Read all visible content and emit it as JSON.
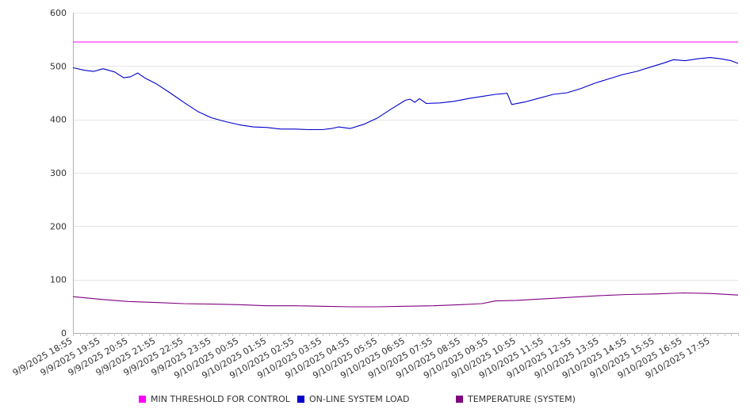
{
  "chart_data": {
    "type": "line",
    "title": "",
    "xlabel": "",
    "ylabel": "",
    "ylim": [
      0,
      600
    ],
    "y_ticks": [
      0,
      100,
      200,
      300,
      400,
      500,
      600
    ],
    "grid": "horizontal",
    "legend_position": "bottom",
    "x_range": [
      "9/9/2025 18:55",
      "9/10/2025 18:55"
    ],
    "x_tick_labels": [
      "9/9/2025 18:55",
      "9/9/2025 19:55",
      "9/9/2025 20:55",
      "9/9/2025 21:55",
      "9/9/2025 22:55",
      "9/9/2025 23:55",
      "9/10/2025 00:55",
      "9/10/2025 01:55",
      "9/10/2025 02:55",
      "9/10/2025 03:55",
      "9/10/2025 04:55",
      "9/10/2025 05:55",
      "9/10/2025 06:55",
      "9/10/2025 07:55",
      "9/10/2025 08:55",
      "9/10/2025 09:55",
      "9/10/2025 10:55",
      "9/10/2025 11:55",
      "9/10/2025 12:55",
      "9/10/2025 13:55",
      "9/10/2025 14:55",
      "9/10/2025 15:55",
      "9/10/2025 16:55",
      "9/10/2025 17:55"
    ],
    "series": [
      {
        "name": "MIN THRESHOLD FOR CONTROL",
        "color": "#ff00ff",
        "points": [
          [
            "9/9/2025 18:55",
            545
          ],
          [
            "9/10/2025 18:55",
            545
          ]
        ]
      },
      {
        "name": "ON-LINE SYSTEM LOAD",
        "color": "#0000cc",
        "points": [
          [
            "9/9/2025 18:55",
            497
          ],
          [
            "9/9/2025 19:20",
            492
          ],
          [
            "9/9/2025 19:40",
            490
          ],
          [
            "9/9/2025 20:00",
            495
          ],
          [
            "9/9/2025 20:25",
            489
          ],
          [
            "9/9/2025 20:45",
            478
          ],
          [
            "9/9/2025 21:00",
            480
          ],
          [
            "9/9/2025 21:15",
            487
          ],
          [
            "9/9/2025 21:30",
            478
          ],
          [
            "9/9/2025 21:55",
            467
          ],
          [
            "9/9/2025 22:25",
            450
          ],
          [
            "9/9/2025 22:55",
            432
          ],
          [
            "9/9/2025 23:25",
            415
          ],
          [
            "9/9/2025 23:55",
            403
          ],
          [
            "9/10/2025 00:25",
            396
          ],
          [
            "9/10/2025 00:55",
            390
          ],
          [
            "9/10/2025 01:25",
            386
          ],
          [
            "9/10/2025 01:55",
            385
          ],
          [
            "9/10/2025 02:25",
            382
          ],
          [
            "9/10/2025 02:55",
            382
          ],
          [
            "9/10/2025 03:25",
            381
          ],
          [
            "9/10/2025 03:55",
            381
          ],
          [
            "9/10/2025 04:15",
            383
          ],
          [
            "9/10/2025 04:30",
            386
          ],
          [
            "9/10/2025 04:55",
            383
          ],
          [
            "9/10/2025 05:25",
            391
          ],
          [
            "9/10/2025 05:55",
            403
          ],
          [
            "9/10/2025 06:25",
            420
          ],
          [
            "9/10/2025 06:55",
            436
          ],
          [
            "9/10/2025 07:05",
            438
          ],
          [
            "9/10/2025 07:15",
            432
          ],
          [
            "9/10/2025 07:25",
            439
          ],
          [
            "9/10/2025 07:40",
            430
          ],
          [
            "9/10/2025 08:10",
            431
          ],
          [
            "9/10/2025 08:40",
            434
          ],
          [
            "9/10/2025 09:10",
            439
          ],
          [
            "9/10/2025 09:40",
            443
          ],
          [
            "9/10/2025 10:10",
            447
          ],
          [
            "9/10/2025 10:35",
            449
          ],
          [
            "9/10/2025 10:45",
            428
          ],
          [
            "9/10/2025 11:15",
            433
          ],
          [
            "9/10/2025 11:45",
            440
          ],
          [
            "9/10/2025 12:15",
            447
          ],
          [
            "9/10/2025 12:45",
            450
          ],
          [
            "9/10/2025 13:15",
            458
          ],
          [
            "9/10/2025 13:45",
            468
          ],
          [
            "9/10/2025 14:15",
            476
          ],
          [
            "9/10/2025 14:45",
            484
          ],
          [
            "9/10/2025 15:15",
            490
          ],
          [
            "9/10/2025 15:45",
            498
          ],
          [
            "9/10/2025 16:15",
            506
          ],
          [
            "9/10/2025 16:35",
            512
          ],
          [
            "9/10/2025 17:00",
            510
          ],
          [
            "9/10/2025 17:30",
            514
          ],
          [
            "9/10/2025 17:55",
            516
          ],
          [
            "9/10/2025 18:15",
            514
          ],
          [
            "9/10/2025 18:40",
            510
          ],
          [
            "9/10/2025 18:55",
            505
          ]
        ]
      },
      {
        "name": "TEMPERATURE (SYSTEM)",
        "color": "#800080",
        "points": [
          [
            "9/9/2025 18:55",
            68
          ],
          [
            "9/9/2025 19:55",
            63
          ],
          [
            "9/9/2025 20:55",
            59
          ],
          [
            "9/9/2025 21:55",
            57
          ],
          [
            "9/9/2025 22:55",
            55
          ],
          [
            "9/9/2025 23:55",
            54
          ],
          [
            "9/10/2025 00:55",
            53
          ],
          [
            "9/10/2025 01:55",
            51
          ],
          [
            "9/10/2025 02:55",
            51
          ],
          [
            "9/10/2025 03:55",
            50
          ],
          [
            "9/10/2025 04:55",
            49
          ],
          [
            "9/10/2025 05:55",
            49
          ],
          [
            "9/10/2025 06:55",
            50
          ],
          [
            "9/10/2025 07:55",
            51
          ],
          [
            "9/10/2025 08:55",
            53
          ],
          [
            "9/10/2025 09:40",
            55
          ],
          [
            "9/10/2025 10:10",
            60
          ],
          [
            "9/10/2025 10:55",
            61
          ],
          [
            "9/10/2025 11:55",
            64
          ],
          [
            "9/10/2025 12:55",
            67
          ],
          [
            "9/10/2025 13:55",
            70
          ],
          [
            "9/10/2025 14:55",
            72
          ],
          [
            "9/10/2025 15:55",
            73
          ],
          [
            "9/10/2025 16:55",
            75
          ],
          [
            "9/10/2025 17:55",
            74
          ],
          [
            "9/10/2025 18:55",
            71
          ]
        ]
      }
    ]
  }
}
